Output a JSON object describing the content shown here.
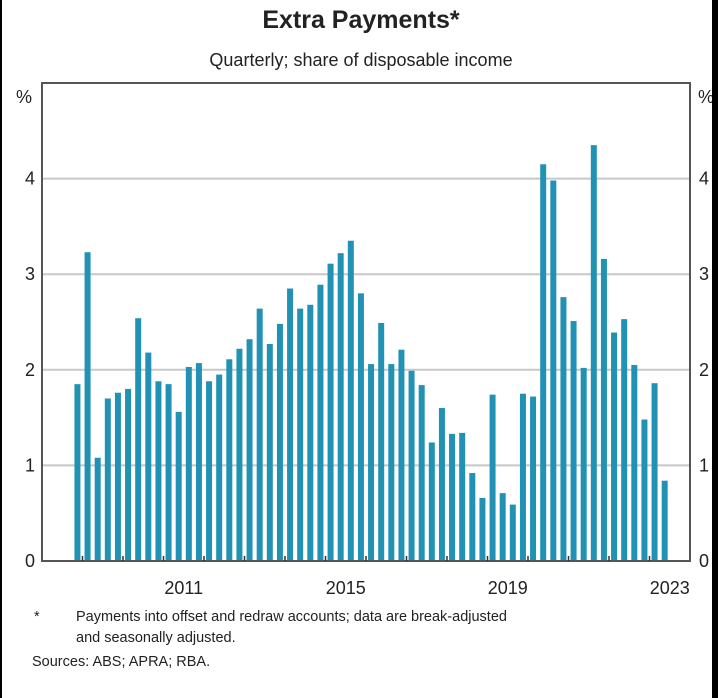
{
  "chart_data": {
    "type": "bar",
    "title": "Extra Payments*",
    "subtitle": "Quarterly; share of disposable income",
    "ylabel_left": "%",
    "ylabel_right": "%",
    "ylim": [
      0,
      5
    ],
    "yticks": [
      0,
      1,
      2,
      3,
      4
    ],
    "grid": true,
    "x_start": "2008 Q4",
    "x_end": "2023 Q2",
    "frequency": "quarterly",
    "xtick_labels": [
      "2011",
      "2015",
      "2019",
      "2023"
    ],
    "color": "#2192b4",
    "values": [
      1.85,
      3.23,
      1.08,
      1.7,
      1.76,
      1.8,
      2.54,
      2.18,
      1.88,
      1.85,
      1.56,
      2.03,
      2.07,
      1.88,
      1.95,
      2.11,
      2.22,
      2.32,
      2.64,
      2.27,
      2.48,
      2.85,
      2.64,
      2.68,
      2.89,
      3.11,
      3.22,
      3.35,
      2.8,
      2.06,
      2.49,
      2.06,
      2.21,
      1.99,
      1.84,
      1.24,
      1.6,
      1.33,
      1.34,
      0.92,
      0.66,
      1.74,
      0.71,
      0.59,
      1.75,
      1.72,
      4.15,
      3.98,
      2.76,
      2.51,
      2.02,
      4.35,
      3.16,
      2.39,
      2.53,
      2.05,
      1.48,
      1.86,
      0.84
    ]
  },
  "footnote": {
    "marker": "*",
    "line1": "Payments into offset and redraw accounts; data are break-adjusted",
    "line2": "and seasonally adjusted."
  },
  "sources": "Sources: ABS; APRA; RBA."
}
